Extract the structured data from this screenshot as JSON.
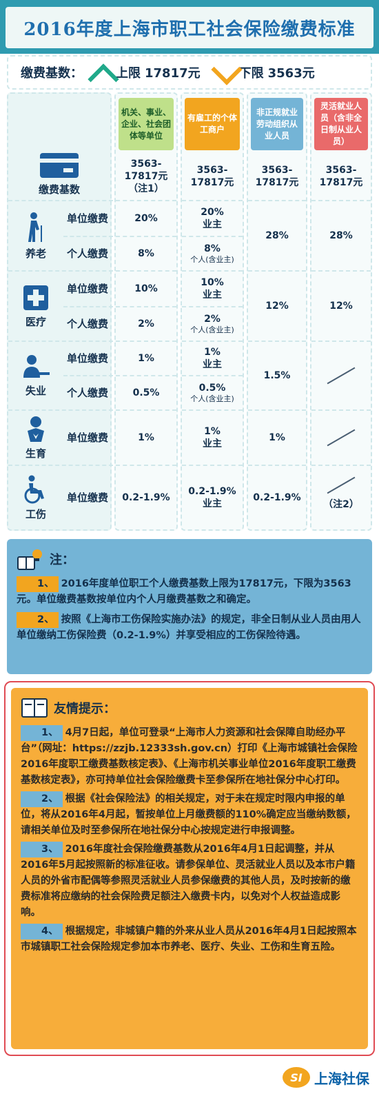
{
  "title": "2016年度上海市职工社会保险缴费标准",
  "base": {
    "label": "缴费基数：",
    "upper_label": "上限",
    "upper_value": "17817元",
    "lower_label": "下限",
    "lower_value": "3563元"
  },
  "columns": [
    {
      "header": "机关、事业、企业、社会团体等单位",
      "color": "#bfe08a"
    },
    {
      "header": "有雇工的个体工商户",
      "color": "#f2a51f"
    },
    {
      "header": "非正规就业劳动组织从业人员",
      "color": "#74b4d6"
    },
    {
      "header": "灵活就业人员（含非全日制从业人员）",
      "color": "#e96a6a"
    }
  ],
  "rows": {
    "base_label": "缴费基数",
    "base_values": [
      "3563-17817元（注1）",
      "3563-17817元",
      "3563-17817元",
      "3563-17817元"
    ],
    "pension": "养老",
    "medical": "医疗",
    "unemployment": "失业",
    "maternity": "生育",
    "injury": "工伤",
    "unit_pay": "单位缴费",
    "personal_pay": "个人缴费"
  },
  "values": {
    "pension_unit": [
      "20%",
      "20%",
      "业主"
    ],
    "pension_personal": [
      "8%",
      "8%",
      "个人(含业主)"
    ],
    "pension_c3": "28%",
    "pension_c4": "28%",
    "medical_unit": [
      "10%",
      "10%",
      "业主"
    ],
    "medical_personal": [
      "2%",
      "2%",
      "个人(含业主)"
    ],
    "medical_c3": "12%",
    "medical_c4": "12%",
    "unemp_unit": [
      "1%",
      "1%",
      "业主"
    ],
    "unemp_personal": [
      "0.5%",
      "0.5%",
      "个人(含业主)"
    ],
    "unemp_c3": "1.5%",
    "mat_unit": [
      "1%",
      "1%",
      "业主"
    ],
    "mat_c3": "1%",
    "inj_unit": [
      "0.2-1.9%",
      "0.2-1.9%",
      "业主"
    ],
    "inj_c3": "0.2-1.9%",
    "inj_c4_note": "（注2）"
  },
  "notes": {
    "title": "注：",
    "n1_num": "1、",
    "n1": "2016年度单位职工个人缴费基数上限为17817元，下限为3563元。单位缴费基数按单位内个人月缴费基数之和确定。",
    "n2_num": "2、",
    "n2": "按照《上海市工伤保险实施办法》的规定，非全日制从业人员由用人单位缴纳工伤保险费（0.2-1.9%）并享受相应的工伤保险待遇。"
  },
  "tips": {
    "title": "友情提示：",
    "t1_num": "1、",
    "t1": "4月7日起，单位可登录“上海市人力资源和社会保障自助经办平台”（网址：https://zzjb.12333sh.gov.cn）打印《上海市城镇社会保险2016年度职工缴费基数核定表》、《上海市机关事业单位2016年度职工缴费基数核定表》，亦可持单位社会保险缴费卡至参保所在地社保分中心打印。",
    "t2_num": "2、",
    "t2": "根据《社会保险法》的相关规定，对于未在规定时限内申报的单位，将从2016年4月起，暂按单位上月缴费额的110%确定应当缴纳数额，请相关单位及时至参保所在地社保分中心按规定进行申报调整。",
    "t3_num": "3、",
    "t3": "2016年度社会保险缴费基数从2016年4月1日起调整，并从2016年5月起按照新的标准征收。请参保单位、灵活就业人员以及本市户籍人员的外省市配偶等参照灵活就业人员参保缴费的其他人员，及时按新的缴费标准将应缴纳的社会保险费足额注入缴费卡内，以免对个人权益造成影响。",
    "t4_num": "4、",
    "t4": "根据规定，非城镇户籍的外来从业人员从2016年4月1日起按照本市城镇职工社会保险规定参加本市养老、医疗、失业、工伤和生育五险。"
  },
  "footer": {
    "logo_text": "SI",
    "brand": "上海社保"
  }
}
